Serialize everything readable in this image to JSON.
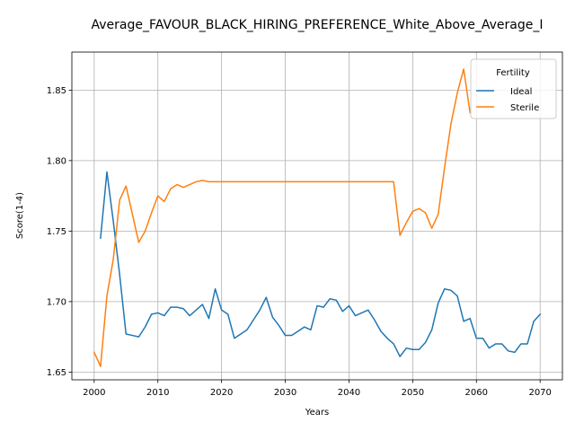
{
  "chart_data": {
    "type": "line",
    "title": "Average_FAVOUR_BLACK_HIRING_PREFERENCE_White_Above_Average_I",
    "xlabel": "Years",
    "ylabel": "Score(1-4)",
    "xlim": [
      1996.5,
      2073.5
    ],
    "ylim": [
      1.6445,
      1.877
    ],
    "xticks": [
      2000,
      2010,
      2020,
      2030,
      2040,
      2050,
      2060,
      2070
    ],
    "yticks": [
      1.65,
      1.7,
      1.75,
      1.8,
      1.85
    ],
    "ytick_labels": [
      "1.65",
      "1.70",
      "1.75",
      "1.80",
      "1.85"
    ],
    "grid": true,
    "legend": {
      "title": "Fertility",
      "placement": "top-right"
    },
    "series": [
      {
        "name": "Ideal",
        "color": "#1f77b4",
        "x": [
          2001,
          2002,
          2003,
          2004,
          2005,
          2006,
          2007,
          2008,
          2009,
          2010,
          2011,
          2012,
          2013,
          2014,
          2015,
          2016,
          2017,
          2018,
          2019,
          2020,
          2021,
          2022,
          2023,
          2024,
          2025,
          2026,
          2027,
          2028,
          2029,
          2030,
          2031,
          2032,
          2033,
          2034,
          2035,
          2036,
          2037,
          2038,
          2039,
          2040,
          2041,
          2042,
          2043,
          2044,
          2045,
          2046,
          2047,
          2048,
          2049,
          2050,
          2051,
          2052,
          2053,
          2054,
          2055,
          2056,
          2057,
          2058,
          2059,
          2060,
          2061,
          2062,
          2063,
          2064,
          2065,
          2066,
          2067,
          2068,
          2069,
          2070
        ],
        "y": [
          1.745,
          1.792,
          1.757,
          1.719,
          1.677,
          1.676,
          1.675,
          1.682,
          1.691,
          1.692,
          1.69,
          1.696,
          1.696,
          1.695,
          1.69,
          1.694,
          1.698,
          1.688,
          1.709,
          1.694,
          1.691,
          1.674,
          1.677,
          1.68,
          1.687,
          1.694,
          1.703,
          1.689,
          1.683,
          1.676,
          1.676,
          1.679,
          1.682,
          1.68,
          1.697,
          1.696,
          1.702,
          1.701,
          1.693,
          1.697,
          1.69,
          1.692,
          1.694,
          1.687,
          1.679,
          1.674,
          1.67,
          1.661,
          1.667,
          1.666,
          1.666,
          1.671,
          1.68,
          1.699,
          1.709,
          1.708,
          1.704,
          1.686,
          1.688,
          1.674,
          1.674,
          1.667,
          1.67,
          1.67,
          1.665,
          1.664,
          1.67,
          1.67,
          1.686,
          1.691
        ]
      },
      {
        "name": "Sterile",
        "color": "#ff7f0e",
        "x": [
          2000,
          2001,
          2002,
          2003,
          2004,
          2005,
          2006,
          2007,
          2008,
          2009,
          2010,
          2011,
          2012,
          2013,
          2014,
          2015,
          2016,
          2017,
          2018,
          2019,
          2020,
          2021,
          2022,
          2023,
          2024,
          2025,
          2026,
          2027,
          2028,
          2029,
          2030,
          2031,
          2032,
          2033,
          2034,
          2035,
          2036,
          2037,
          2038,
          2039,
          2040,
          2041,
          2042,
          2043,
          2044,
          2045,
          2046,
          2047,
          2048,
          2049,
          2050,
          2051,
          2052,
          2053,
          2054,
          2055,
          2056,
          2057,
          2058,
          2059
        ],
        "y": [
          1.664,
          1.654,
          1.704,
          1.73,
          1.772,
          1.782,
          1.762,
          1.742,
          1.75,
          1.763,
          1.775,
          1.771,
          1.78,
          1.783,
          1.781,
          1.783,
          1.785,
          1.786,
          1.785,
          1.785,
          1.785,
          1.785,
          1.785,
          1.785,
          1.785,
          1.785,
          1.785,
          1.785,
          1.785,
          1.785,
          1.785,
          1.785,
          1.785,
          1.785,
          1.785,
          1.785,
          1.785,
          1.785,
          1.785,
          1.785,
          1.785,
          1.785,
          1.785,
          1.785,
          1.785,
          1.785,
          1.785,
          1.785,
          1.747,
          1.756,
          1.764,
          1.766,
          1.763,
          1.752,
          1.762,
          1.795,
          1.826,
          1.848,
          1.865,
          1.834
        ]
      }
    ]
  }
}
